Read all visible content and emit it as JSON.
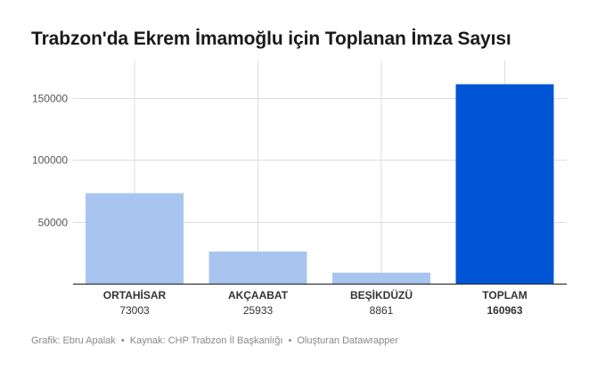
{
  "title": "Trabzon'da Ekrem İmamoğlu için Toplanan İmza Sayısı",
  "footer": {
    "author": "Grafik: Ebru Apalak",
    "source": "Kaynak: CHP Trabzon İl Başkanlığı",
    "tool": "Oluşturan Datawrapper",
    "separator": "•"
  },
  "chart_data": {
    "type": "bar",
    "title": "Trabzon'da Ekrem İmamoğlu için Toplanan İmza Sayısı",
    "xlabel": "",
    "ylabel": "",
    "categories": [
      "ORTAHİSAR",
      "AKÇAABAT",
      "BEŞİKDÜZÜ",
      "TOPLAM"
    ],
    "values": [
      73003,
      25933,
      8861,
      160963
    ],
    "value_labels": [
      "73003",
      "25933",
      "8861",
      "160963"
    ],
    "bar_colors": [
      "#a8c5f0",
      "#a8c5f0",
      "#a8c5f0",
      "#0055d4"
    ],
    "highlight_index": 3,
    "ylim": [
      0,
      180000
    ],
    "yticks": [
      50000,
      100000,
      150000
    ],
    "ytick_labels": [
      "50000",
      "100000",
      "150000"
    ],
    "grid": true,
    "legend": "none"
  },
  "colors": {
    "bar_default": "#a8c5f0",
    "bar_highlight": "#0055d4",
    "grid": "#dddddd",
    "axis": "#333333",
    "text": "#333333",
    "muted": "#888888"
  }
}
